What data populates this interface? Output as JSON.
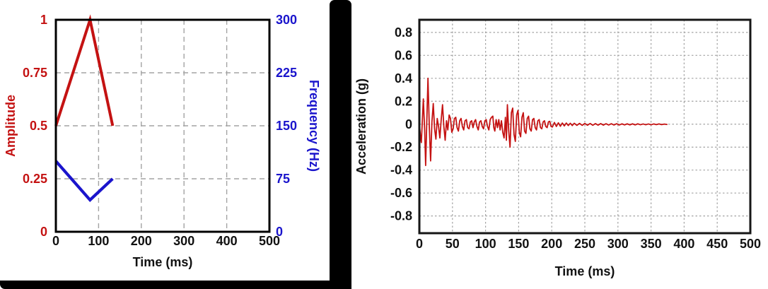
{
  "theme": {
    "background": "#ffffff",
    "frame_black": "#000000",
    "grid_color": "#a3a3a3",
    "axis_border_left_chart": "#000000",
    "axis_border_right_chart": "#161616",
    "red": "#c41212",
    "blue": "#1a14cc",
    "tick_text_black": "#111111"
  },
  "chart_data": [
    {
      "type": "line",
      "title": "",
      "xlabel": "Time (ms)",
      "ylabel_left": "Amplitude",
      "ylabel_right": "Frequency (Hz)",
      "xlim": [
        0,
        500
      ],
      "ylim_left": [
        0,
        1
      ],
      "ylim_right": [
        0,
        300
      ],
      "grid": "dashed",
      "legend": "none",
      "xticks": [
        {
          "v": 0,
          "label": "0"
        },
        {
          "v": 100,
          "label": "100"
        },
        {
          "v": 200,
          "label": "200"
        },
        {
          "v": 300,
          "label": "300"
        },
        {
          "v": 400,
          "label": "400"
        },
        {
          "v": 500,
          "label": "500"
        }
      ],
      "yticks_left": [
        {
          "v": 0,
          "label": "0"
        },
        {
          "v": 0.25,
          "label": "0.25"
        },
        {
          "v": 0.5,
          "label": "0.5"
        },
        {
          "v": 0.75,
          "label": "0.75"
        },
        {
          "v": 1,
          "label": "1"
        }
      ],
      "yticks_right": [
        {
          "v": 0,
          "label": "0"
        },
        {
          "v": 75,
          "label": "75"
        },
        {
          "v": 150,
          "label": "150"
        },
        {
          "v": 225,
          "label": "225"
        },
        {
          "v": 300,
          "label": "300"
        }
      ],
      "series": [
        {
          "name": "amplitude",
          "axis": "left",
          "color": "#c41212",
          "width": 4,
          "points": [
            [
              0,
              0.5
            ],
            [
              80,
              1.0
            ],
            [
              133,
              0.5
            ]
          ]
        },
        {
          "name": "frequency",
          "axis": "right",
          "color": "#1a14cc",
          "width": 4.2,
          "points": [
            [
              0,
              100
            ],
            [
              80,
              45
            ],
            [
              133,
              75
            ]
          ]
        }
      ]
    },
    {
      "type": "line",
      "title": "",
      "xlabel": "Time (ms)",
      "ylabel": "Acceleration (g)",
      "xlim": [
        0,
        500
      ],
      "ylim": [
        -0.95,
        0.91
      ],
      "grid": "dotted",
      "legend": "none",
      "xticks": [
        {
          "v": 0,
          "label": "0"
        },
        {
          "v": 50,
          "label": "50"
        },
        {
          "v": 100,
          "label": "100"
        },
        {
          "v": 150,
          "label": "150"
        },
        {
          "v": 200,
          "label": "200"
        },
        {
          "v": 250,
          "label": "250"
        },
        {
          "v": 300,
          "label": "300"
        },
        {
          "v": 350,
          "label": "350"
        },
        {
          "v": 400,
          "label": "400"
        },
        {
          "v": 450,
          "label": "450"
        },
        {
          "v": 500,
          "label": "500"
        }
      ],
      "yticks": [
        {
          "v": 0.8,
          "label": "0.8"
        },
        {
          "v": 0.6,
          "label": "0.6"
        },
        {
          "v": 0.4,
          "label": "0.4"
        },
        {
          "v": 0.2,
          "label": "0.2"
        },
        {
          "v": 0,
          "label": "0"
        },
        {
          "v": -0.2,
          "label": "-0.2"
        },
        {
          "v": -0.4,
          "label": "-0.4"
        },
        {
          "v": -0.6,
          "label": "-0.6"
        },
        {
          "v": -0.8,
          "label": "-0.8"
        }
      ],
      "series": [
        {
          "name": "acceleration",
          "color": "#c41212",
          "width": 1.8,
          "points": [
            [
              0,
              0
            ],
            [
              1.5,
              -0.09
            ],
            [
              3,
              -0.16
            ],
            [
              4.5,
              0.03
            ],
            [
              6,
              0.22
            ],
            [
              8,
              -0.05
            ],
            [
              9.5,
              -0.36
            ],
            [
              11.5,
              0.08
            ],
            [
              13,
              0.4
            ],
            [
              15,
              -0.02
            ],
            [
              17,
              -0.32
            ],
            [
              19,
              0.02
            ],
            [
              21,
              0.18
            ],
            [
              23,
              -0.04
            ],
            [
              25,
              -0.13
            ],
            [
              27,
              0.05
            ],
            [
              29,
              -0.02
            ],
            [
              31,
              -0.12
            ],
            [
              33,
              0.04
            ],
            [
              35,
              0.17
            ],
            [
              37,
              -0.02
            ],
            [
              39,
              -0.14
            ],
            [
              41,
              0.03
            ],
            [
              43,
              -0.05
            ],
            [
              45,
              0.08
            ],
            [
              47,
              0.05
            ],
            [
              49,
              -0.07
            ],
            [
              51,
              -0.04
            ],
            [
              53,
              0.05
            ],
            [
              55,
              0.06
            ],
            [
              57,
              -0.03
            ],
            [
              59,
              -0.06
            ],
            [
              61,
              0.03
            ],
            [
              63,
              0.05
            ],
            [
              65,
              -0.02
            ],
            [
              67,
              -0.05
            ],
            [
              69,
              0.03
            ],
            [
              71,
              0.04
            ],
            [
              73,
              -0.03
            ],
            [
              75,
              -0.04
            ],
            [
              77,
              0.02
            ],
            [
              79,
              0.03
            ],
            [
              81,
              -0.03
            ],
            [
              83,
              0.02
            ],
            [
              85,
              0.04
            ],
            [
              87,
              -0.02
            ],
            [
              89,
              -0.05
            ],
            [
              91,
              0.02
            ],
            [
              93,
              0.03
            ],
            [
              95,
              -0.02
            ],
            [
              97,
              -0.04
            ],
            [
              99,
              0.03
            ],
            [
              101,
              0.04
            ],
            [
              103,
              -0.02
            ],
            [
              105,
              -0.05
            ],
            [
              107,
              0.04
            ],
            [
              109,
              0.06
            ],
            [
              111,
              0.07
            ],
            [
              112.5,
              -0.03
            ],
            [
              114,
              -0.06
            ],
            [
              116,
              0.04
            ],
            [
              118,
              -0.03
            ],
            [
              120,
              0.04
            ],
            [
              122,
              -0.05
            ],
            [
              124,
              0.03
            ],
            [
              126,
              -0.07
            ],
            [
              128,
              -0.12
            ],
            [
              130,
              0.06
            ],
            [
              131.5,
              -0.14
            ],
            [
              133,
              0.17
            ],
            [
              135,
              -0.06
            ],
            [
              137,
              -0.2
            ],
            [
              139,
              0.1
            ],
            [
              141,
              0.14
            ],
            [
              143,
              -0.09
            ],
            [
              145,
              -0.15
            ],
            [
              147,
              0.08
            ],
            [
              149,
              0.12
            ],
            [
              151,
              -0.07
            ],
            [
              153,
              -0.11
            ],
            [
              155,
              0.06
            ],
            [
              157,
              0.1
            ],
            [
              159,
              -0.06
            ],
            [
              161,
              -0.08
            ],
            [
              163,
              0.05
            ],
            [
              165,
              0.07
            ],
            [
              167,
              -0.04
            ],
            [
              169,
              -0.06
            ],
            [
              171,
              0.04
            ],
            [
              173,
              0.05
            ],
            [
              175,
              -0.03
            ],
            [
              177,
              -0.05
            ],
            [
              179,
              0.03
            ],
            [
              181,
              0.04
            ],
            [
              183,
              -0.03
            ],
            [
              185,
              -0.04
            ],
            [
              187,
              0.02
            ],
            [
              189,
              0.03
            ],
            [
              191,
              -0.02
            ],
            [
              193,
              -0.03
            ],
            [
              195,
              0.02
            ],
            [
              197,
              0.025
            ],
            [
              199,
              -0.02
            ],
            [
              201,
              -0.025
            ],
            [
              204,
              0.015
            ],
            [
              207,
              -0.02
            ],
            [
              210,
              0.012
            ],
            [
              213,
              -0.018
            ],
            [
              216,
              0.01
            ],
            [
              219,
              -0.015
            ],
            [
              222,
              0.01
            ],
            [
              225,
              -0.012
            ],
            [
              228,
              0.008
            ],
            [
              231,
              -0.012
            ],
            [
              234,
              0.008
            ],
            [
              238,
              -0.01
            ],
            [
              242,
              0.007
            ],
            [
              246,
              -0.01
            ],
            [
              250,
              0.006
            ],
            [
              254,
              -0.009
            ],
            [
              258,
              0.006
            ],
            [
              262,
              -0.009
            ],
            [
              266,
              0.005
            ],
            [
              270,
              -0.008
            ],
            [
              274,
              0.005
            ],
            [
              278,
              -0.008
            ],
            [
              282,
              0.004
            ],
            [
              286,
              -0.007
            ],
            [
              290,
              0.004
            ],
            [
              294,
              -0.007
            ],
            [
              298,
              0.004
            ],
            [
              302,
              -0.007
            ],
            [
              306,
              0.003
            ],
            [
              310,
              -0.006
            ],
            [
              314,
              0.003
            ],
            [
              318,
              -0.006
            ],
            [
              322,
              0.003
            ],
            [
              326,
              -0.006
            ],
            [
              330,
              0.003
            ],
            [
              334,
              -0.005
            ],
            [
              338,
              0.002
            ],
            [
              342,
              -0.005
            ],
            [
              346,
              0.002
            ],
            [
              350,
              -0.005
            ],
            [
              354,
              0.002
            ],
            [
              358,
              -0.004
            ],
            [
              362,
              0.002
            ],
            [
              366,
              -0.004
            ],
            [
              370,
              0.001
            ],
            [
              374,
              -0.002
            ]
          ]
        }
      ]
    }
  ]
}
